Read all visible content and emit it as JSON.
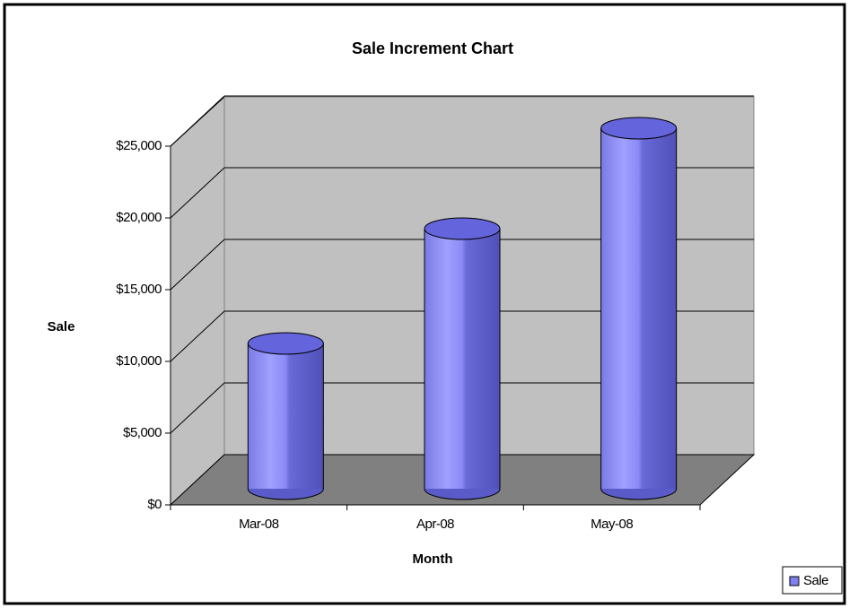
{
  "chart_data": {
    "type": "bar3d",
    "title": "Sale Increment Chart",
    "x_label": "Month",
    "y_label": "Sale",
    "categories": [
      "Mar-08",
      "Apr-08",
      "May-08"
    ],
    "series": [
      {
        "name": "Sale",
        "color": "#8080f0",
        "values": [
          10000,
          18000,
          25000
        ]
      }
    ],
    "ylim": [
      0,
      25000
    ],
    "yticks": [
      {
        "value": 0,
        "label": "$0"
      },
      {
        "value": 5000,
        "label": "$5,000"
      },
      {
        "value": 10000,
        "label": "$10,000"
      },
      {
        "value": 15000,
        "label": "$15,000"
      },
      {
        "value": 20000,
        "label": "$20,000"
      },
      {
        "value": 25000,
        "label": "$25,000"
      }
    ],
    "grid": true,
    "legend": "bottom-right"
  }
}
